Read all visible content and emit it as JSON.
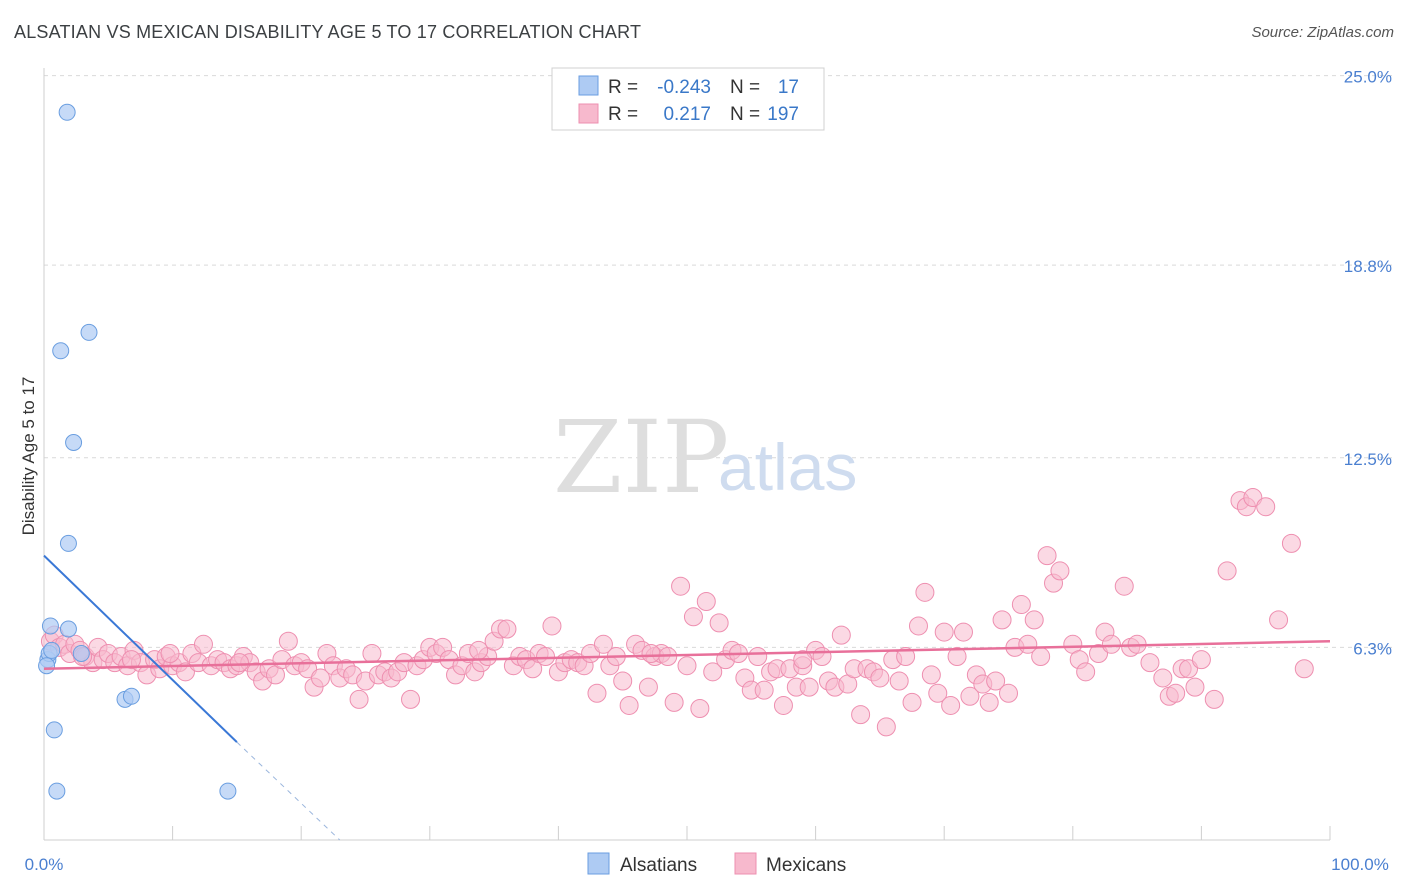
{
  "title": "ALSATIAN VS MEXICAN DISABILITY AGE 5 TO 17 CORRELATION CHART",
  "source": "Source: ZipAtlas.com",
  "watermark": {
    "zip": "ZIP",
    "atlas": "atlas"
  },
  "colors": {
    "alsatian_fill": "#aecbf3",
    "alsatian_stroke": "#6a9ee0",
    "alsatian_line": "#3a78d6",
    "mexican_fill": "#f7b9cd",
    "mexican_stroke": "#ee8fb0",
    "mexican_line": "#e8709a",
    "tick_label": "#4a7fd0",
    "grid": "#d9d9d9"
  },
  "legend": {
    "rows": [
      {
        "r_label": "R =",
        "r_value": "-0.243",
        "n_label": "N =",
        "n_value": "17"
      },
      {
        "r_label": "R =",
        "r_value": "0.217",
        "n_label": "N =",
        "n_value": "197"
      }
    ]
  },
  "chart_data": {
    "type": "scatter",
    "xlabel": "",
    "ylabel": "Disability Age 5 to 17",
    "xlim": [
      0,
      100
    ],
    "ylim": [
      0,
      26
    ],
    "x_tick_labels": [
      "0.0%",
      "100.0%"
    ],
    "y_ticks": [
      6.3,
      12.5,
      18.8,
      25.0
    ],
    "y_tick_labels": [
      "6.3%",
      "12.5%",
      "18.8%",
      "25.0%"
    ],
    "grid": "horizontal dashed",
    "legend_position": "top-center",
    "series": [
      {
        "name": "Alsatians",
        "points": [
          [
            0.3,
            5.9
          ],
          [
            0.4,
            6.1
          ],
          [
            0.5,
            7.0
          ],
          [
            0.6,
            6.2
          ],
          [
            0.8,
            3.6
          ],
          [
            1.0,
            1.6
          ],
          [
            1.3,
            16.0
          ],
          [
            1.8,
            23.8
          ],
          [
            1.9,
            6.9
          ],
          [
            1.9,
            9.7
          ],
          [
            2.3,
            13.0
          ],
          [
            2.9,
            6.1
          ],
          [
            3.5,
            16.6
          ],
          [
            6.3,
            4.6
          ],
          [
            6.8,
            4.7
          ],
          [
            14.3,
            1.6
          ],
          [
            0.2,
            5.7
          ]
        ],
        "trend": {
          "x": [
            0,
            15
          ],
          "y": [
            9.3,
            3.2
          ],
          "dashed_to": [
            23,
            0
          ]
        }
      },
      {
        "name": "Mexicans",
        "points": [
          [
            0.5,
            6.5
          ],
          [
            0.8,
            6.7
          ],
          [
            1.2,
            6.3
          ],
          [
            1.6,
            6.4
          ],
          [
            2.0,
            6.1
          ],
          [
            2.4,
            6.4
          ],
          [
            2.8,
            6.2
          ],
          [
            3.2,
            6.0
          ],
          [
            3.8,
            5.8
          ],
          [
            4.2,
            6.3
          ],
          [
            4.6,
            5.9
          ],
          [
            5.0,
            6.1
          ],
          [
            5.5,
            5.8
          ],
          [
            6.0,
            6.0
          ],
          [
            6.5,
            5.7
          ],
          [
            7.0,
            6.2
          ],
          [
            7.5,
            5.8
          ],
          [
            8.0,
            5.4
          ],
          [
            8.6,
            5.9
          ],
          [
            9.0,
            5.6
          ],
          [
            9.5,
            6.0
          ],
          [
            10.0,
            5.7
          ],
          [
            10.5,
            5.8
          ],
          [
            11.0,
            5.5
          ],
          [
            11.5,
            6.1
          ],
          [
            12.0,
            5.8
          ],
          [
            12.4,
            6.4
          ],
          [
            13.0,
            5.7
          ],
          [
            13.5,
            5.9
          ],
          [
            14.0,
            5.8
          ],
          [
            14.5,
            5.6
          ],
          [
            15.0,
            5.7
          ],
          [
            15.5,
            6.0
          ],
          [
            16.0,
            5.8
          ],
          [
            16.5,
            5.5
          ],
          [
            17.0,
            5.2
          ],
          [
            17.5,
            5.6
          ],
          [
            18.0,
            5.4
          ],
          [
            18.5,
            5.9
          ],
          [
            19.0,
            6.5
          ],
          [
            19.5,
            5.7
          ],
          [
            20.0,
            5.8
          ],
          [
            20.5,
            5.6
          ],
          [
            21.0,
            5.0
          ],
          [
            21.5,
            5.3
          ],
          [
            22.0,
            6.1
          ],
          [
            22.5,
            5.7
          ],
          [
            23.0,
            5.3
          ],
          [
            23.5,
            5.6
          ],
          [
            24.0,
            5.4
          ],
          [
            24.5,
            4.6
          ],
          [
            25.0,
            5.2
          ],
          [
            25.5,
            6.1
          ],
          [
            26.0,
            5.4
          ],
          [
            26.5,
            5.5
          ],
          [
            27.0,
            5.3
          ],
          [
            27.5,
            5.5
          ],
          [
            28.0,
            5.8
          ],
          [
            28.5,
            4.6
          ],
          [
            29.0,
            5.7
          ],
          [
            29.5,
            5.9
          ],
          [
            30.0,
            6.3
          ],
          [
            30.5,
            6.1
          ],
          [
            31.0,
            6.3
          ],
          [
            31.5,
            5.9
          ],
          [
            32.0,
            5.4
          ],
          [
            32.5,
            5.7
          ],
          [
            33.0,
            6.1
          ],
          [
            33.5,
            5.5
          ],
          [
            34.0,
            5.8
          ],
          [
            34.5,
            6.0
          ],
          [
            35.0,
            6.5
          ],
          [
            35.5,
            6.9
          ],
          [
            36.0,
            6.9
          ],
          [
            36.5,
            5.7
          ],
          [
            37.0,
            6.0
          ],
          [
            37.5,
            5.9
          ],
          [
            38.0,
            5.6
          ],
          [
            38.5,
            6.1
          ],
          [
            39.0,
            6.0
          ],
          [
            39.5,
            7.0
          ],
          [
            40.0,
            5.5
          ],
          [
            40.5,
            5.8
          ],
          [
            41.0,
            5.9
          ],
          [
            41.5,
            5.8
          ],
          [
            42.0,
            5.7
          ],
          [
            42.5,
            6.1
          ],
          [
            43.0,
            4.8
          ],
          [
            43.5,
            6.4
          ],
          [
            44.0,
            5.7
          ],
          [
            44.5,
            6.0
          ],
          [
            45.0,
            5.2
          ],
          [
            45.5,
            4.4
          ],
          [
            46.0,
            6.4
          ],
          [
            46.5,
            6.2
          ],
          [
            47.0,
            5.0
          ],
          [
            47.5,
            6.0
          ],
          [
            48.0,
            6.1
          ],
          [
            48.5,
            6.0
          ],
          [
            49.0,
            4.5
          ],
          [
            49.5,
            8.3
          ],
          [
            50.0,
            5.7
          ],
          [
            50.5,
            7.3
          ],
          [
            51.0,
            4.3
          ],
          [
            51.5,
            7.8
          ],
          [
            52.0,
            5.5
          ],
          [
            52.5,
            7.1
          ],
          [
            53.0,
            5.9
          ],
          [
            53.5,
            6.2
          ],
          [
            54.0,
            6.1
          ],
          [
            54.5,
            5.3
          ],
          [
            55.0,
            4.9
          ],
          [
            55.5,
            6.0
          ],
          [
            56.0,
            4.9
          ],
          [
            56.5,
            5.5
          ],
          [
            57.0,
            5.6
          ],
          [
            57.5,
            4.4
          ],
          [
            58.0,
            5.6
          ],
          [
            58.5,
            5.0
          ],
          [
            59.0,
            5.7
          ],
          [
            59.5,
            5.0
          ],
          [
            60.0,
            6.2
          ],
          [
            60.5,
            6.0
          ],
          [
            61.0,
            5.2
          ],
          [
            61.5,
            5.0
          ],
          [
            62.0,
            6.7
          ],
          [
            62.5,
            5.1
          ],
          [
            63.0,
            5.6
          ],
          [
            63.5,
            4.1
          ],
          [
            64.0,
            5.6
          ],
          [
            64.5,
            5.5
          ],
          [
            65.0,
            5.3
          ],
          [
            65.5,
            3.7
          ],
          [
            66.0,
            5.9
          ],
          [
            66.5,
            5.2
          ],
          [
            67.0,
            6.0
          ],
          [
            67.5,
            4.5
          ],
          [
            68.0,
            7.0
          ],
          [
            68.5,
            8.1
          ],
          [
            69.0,
            5.4
          ],
          [
            69.5,
            4.8
          ],
          [
            70.0,
            6.8
          ],
          [
            70.5,
            4.4
          ],
          [
            71.0,
            6.0
          ],
          [
            71.5,
            6.8
          ],
          [
            72.0,
            4.7
          ],
          [
            72.5,
            5.4
          ],
          [
            73.0,
            5.1
          ],
          [
            73.5,
            4.5
          ],
          [
            74.0,
            5.2
          ],
          [
            74.5,
            7.2
          ],
          [
            75.0,
            4.8
          ],
          [
            75.5,
            6.3
          ],
          [
            76.0,
            7.7
          ],
          [
            76.5,
            6.4
          ],
          [
            77.0,
            7.2
          ],
          [
            77.5,
            6.0
          ],
          [
            78.0,
            9.3
          ],
          [
            78.5,
            8.4
          ],
          [
            79.0,
            8.8
          ],
          [
            80.0,
            6.4
          ],
          [
            80.5,
            5.9
          ],
          [
            81.0,
            5.5
          ],
          [
            82.0,
            6.1
          ],
          [
            82.5,
            6.8
          ],
          [
            83.0,
            6.4
          ],
          [
            84.0,
            8.3
          ],
          [
            84.5,
            6.3
          ],
          [
            85.0,
            6.4
          ],
          [
            86.0,
            5.8
          ],
          [
            87.0,
            5.3
          ],
          [
            87.5,
            4.7
          ],
          [
            88.0,
            4.8
          ],
          [
            88.5,
            5.6
          ],
          [
            89.0,
            5.6
          ],
          [
            89.5,
            5.0
          ],
          [
            90.0,
            5.9
          ],
          [
            91.0,
            4.6
          ],
          [
            92.0,
            8.8
          ],
          [
            93.0,
            11.1
          ],
          [
            93.5,
            10.9
          ],
          [
            94.0,
            11.2
          ],
          [
            95.0,
            10.9
          ],
          [
            96.0,
            7.2
          ],
          [
            97.0,
            9.7
          ],
          [
            98.0,
            5.6
          ],
          [
            3.0,
            6.0
          ],
          [
            6.8,
            5.9
          ],
          [
            9.8,
            6.1
          ],
          [
            15.2,
            5.8
          ],
          [
            33.8,
            6.2
          ],
          [
            47.2,
            6.1
          ],
          [
            59.0,
            5.9
          ]
        ],
        "trend": {
          "x": [
            0,
            100
          ],
          "y": [
            5.6,
            6.5
          ]
        }
      }
    ]
  }
}
